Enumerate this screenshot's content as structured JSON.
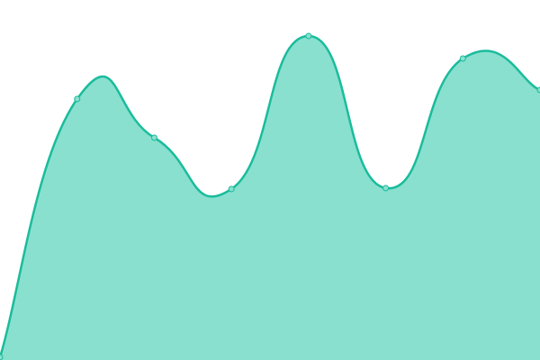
{
  "chart_data": {
    "type": "area",
    "title": "",
    "xlabel": "",
    "ylabel": "",
    "x": [
      0,
      1,
      2,
      3,
      4,
      5,
      6,
      7
    ],
    "values": [
      3,
      290,
      247,
      190,
      360,
      191,
      335,
      300
    ],
    "ylim": [
      0,
      400
    ],
    "grid": false,
    "legend": "none",
    "curve": "smooth",
    "colors": {
      "fill": "#89e0ce",
      "line": "#1abc9c",
      "point_fill": "#89e0ce"
    }
  }
}
